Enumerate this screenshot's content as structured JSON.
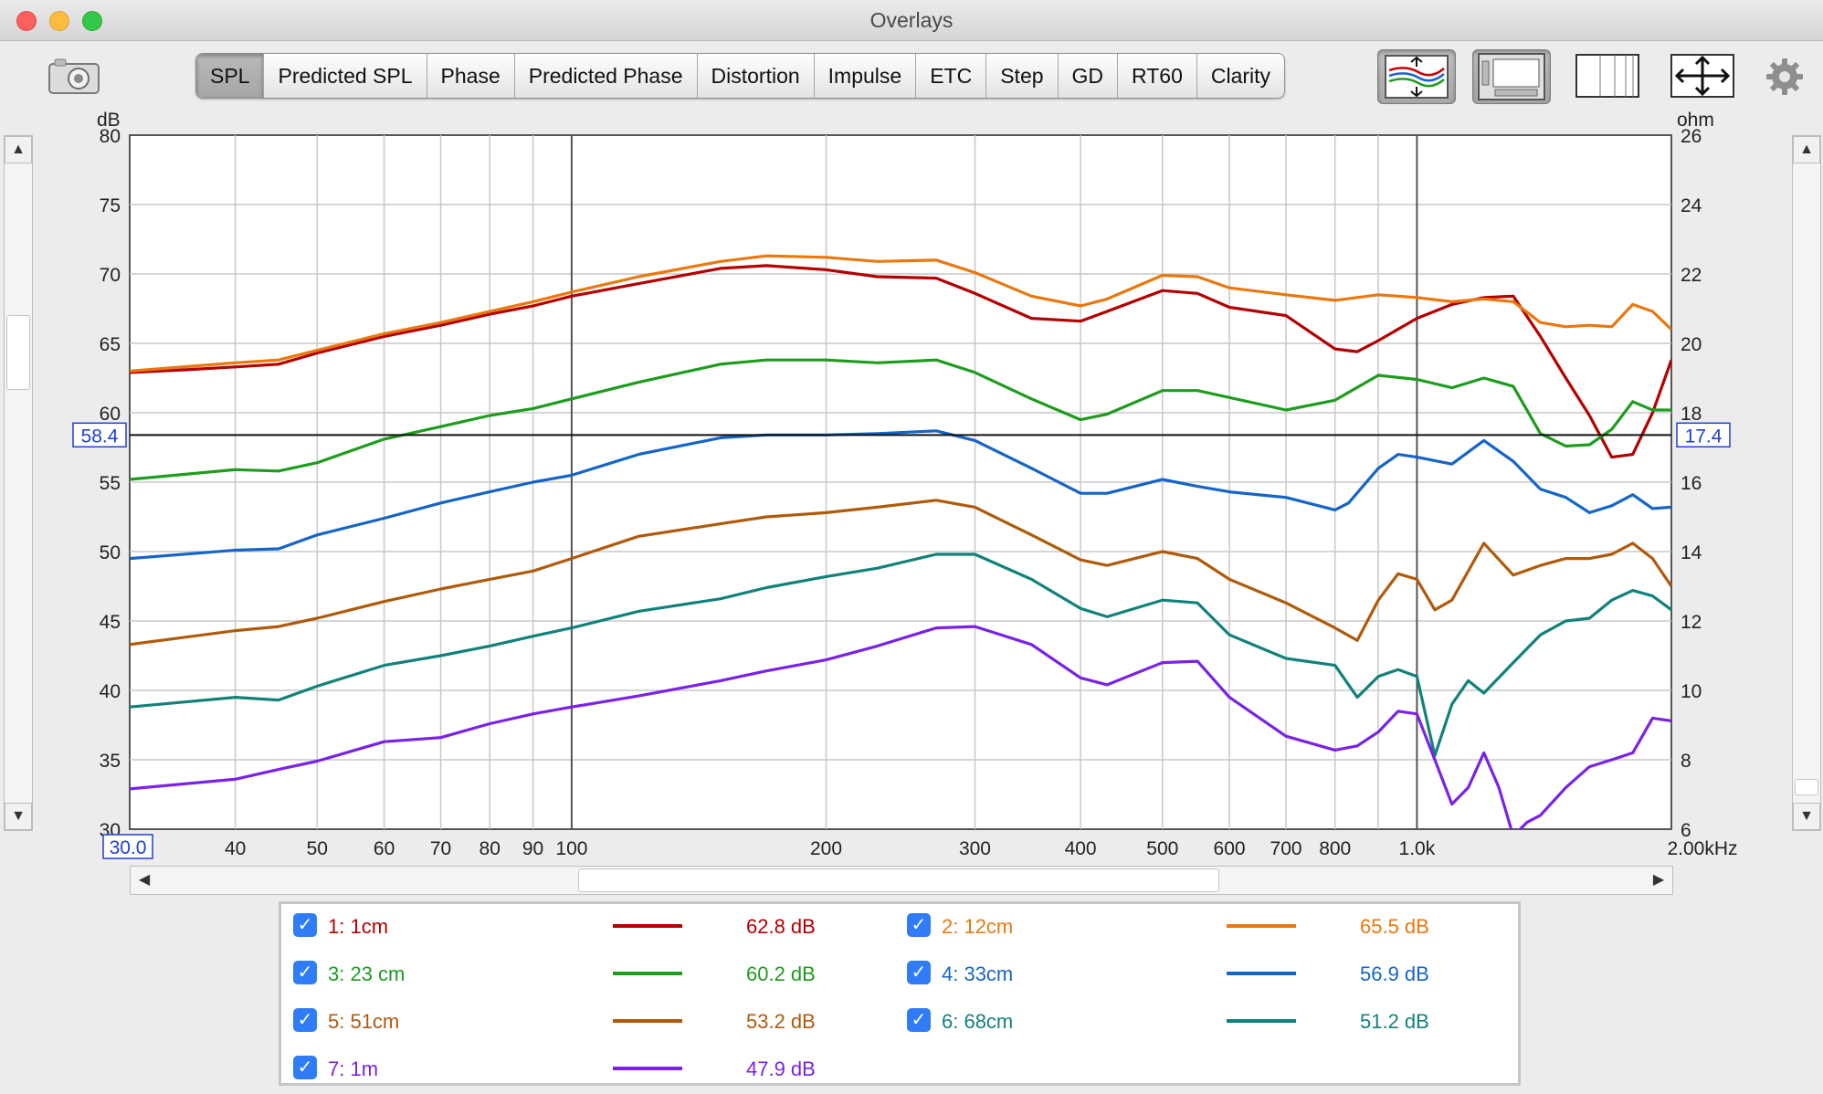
{
  "window": {
    "title": "Overlays"
  },
  "toolbar": {
    "tabs": [
      "SPL",
      "Predicted SPL",
      "Phase",
      "Predicted Phase",
      "Distortion",
      "Impulse",
      "ETC",
      "Step",
      "GD",
      "RT60",
      "Clarity"
    ],
    "active_tab": "SPL",
    "icons": [
      "camera-icon",
      "overlay-traces-icon",
      "fit-view-icon",
      "grid-icon",
      "pan-zoom-icon",
      "gear-icon"
    ]
  },
  "chart_data": {
    "type": "line",
    "x_scale": "log",
    "xlim": [
      30,
      2000
    ],
    "ylim": [
      30,
      80
    ],
    "ylabel": "dB",
    "y2label": "ohm",
    "y2lim": [
      6,
      26
    ],
    "x_unit": "kHz",
    "y_ticks": [
      "80",
      "75",
      "70",
      "65",
      "60",
      "55",
      "50",
      "45",
      "40",
      "35",
      "30"
    ],
    "y2_ticks": [
      "26",
      "24",
      "22",
      "20",
      "18",
      "16",
      "14",
      "12",
      "10",
      "8",
      "6"
    ],
    "x_ticks": [
      {
        "x": 40,
        "label": "40"
      },
      {
        "x": 50,
        "label": "50"
      },
      {
        "x": 60,
        "label": "60"
      },
      {
        "x": 70,
        "label": "70"
      },
      {
        "x": 80,
        "label": "80"
      },
      {
        "x": 90,
        "label": "90"
      },
      {
        "x": 100,
        "label": "100"
      },
      {
        "x": 200,
        "label": "200"
      },
      {
        "x": 300,
        "label": "300"
      },
      {
        "x": 400,
        "label": "400"
      },
      {
        "x": 500,
        "label": "500"
      },
      {
        "x": 600,
        "label": "600"
      },
      {
        "x": 700,
        "label": "700"
      },
      {
        "x": 800,
        "label": "800"
      },
      {
        "x": 1000,
        "label": "1.0k"
      },
      {
        "x": 2000,
        "label": "2.00kHz"
      }
    ],
    "x_start_label": "30.0",
    "cursor": {
      "y": 58.4,
      "left_label": "58.4",
      "right_label": "17.4"
    },
    "grid": true,
    "series": [
      {
        "name": "1: 1cm",
        "color": "#b40000",
        "level": "62.8 dB",
        "x": [
          30,
          35,
          40,
          45,
          50,
          60,
          70,
          80,
          90,
          100,
          120,
          150,
          170,
          200,
          230,
          270,
          300,
          350,
          400,
          430,
          500,
          550,
          600,
          700,
          800,
          850,
          900,
          1000,
          1100,
          1200,
          1300,
          1400,
          1500,
          1600,
          1700,
          1800,
          1900,
          2000
        ],
        "y": [
          62.9,
          63.1,
          63.3,
          63.5,
          64.3,
          65.5,
          66.3,
          67.1,
          67.7,
          68.4,
          69.3,
          70.4,
          70.6,
          70.3,
          69.8,
          69.7,
          68.6,
          66.8,
          66.6,
          67.3,
          68.8,
          68.6,
          67.6,
          67.0,
          64.6,
          64.4,
          65.2,
          66.8,
          67.8,
          68.3,
          68.4,
          65.5,
          62.5,
          59.8,
          56.8,
          57.0,
          60.0,
          63.8
        ]
      },
      {
        "name": "2: 12cm",
        "color": "#e9780f",
        "level": "65.5 dB",
        "x": [
          30,
          40,
          45,
          50,
          60,
          70,
          80,
          90,
          100,
          120,
          150,
          170,
          200,
          230,
          270,
          300,
          350,
          400,
          430,
          500,
          550,
          600,
          700,
          800,
          900,
          1000,
          1100,
          1200,
          1300,
          1400,
          1500,
          1600,
          1700,
          1800,
          1900,
          2000
        ],
        "y": [
          63.0,
          63.6,
          63.8,
          64.5,
          65.7,
          66.5,
          67.3,
          68.0,
          68.7,
          69.8,
          70.9,
          71.3,
          71.2,
          70.9,
          71.0,
          70.1,
          68.4,
          67.7,
          68.2,
          69.9,
          69.8,
          69.0,
          68.5,
          68.1,
          68.5,
          68.3,
          68.0,
          68.2,
          68.0,
          66.5,
          66.2,
          66.3,
          66.2,
          67.8,
          67.3,
          66.0
        ]
      },
      {
        "name": "3: 23 cm",
        "color": "#1e9c1e",
        "level": "60.2 dB",
        "x": [
          30,
          40,
          45,
          50,
          60,
          70,
          80,
          90,
          100,
          120,
          150,
          170,
          200,
          230,
          270,
          300,
          350,
          400,
          430,
          500,
          550,
          600,
          700,
          800,
          900,
          1000,
          1100,
          1200,
          1300,
          1400,
          1500,
          1600,
          1700,
          1800,
          1900,
          2000
        ],
        "y": [
          55.2,
          55.9,
          55.8,
          56.4,
          58.1,
          59.0,
          59.8,
          60.3,
          61.0,
          62.2,
          63.5,
          63.8,
          63.8,
          63.6,
          63.8,
          62.9,
          61.0,
          59.5,
          59.9,
          61.6,
          61.6,
          61.1,
          60.2,
          60.9,
          62.7,
          62.4,
          61.8,
          62.5,
          61.9,
          58.5,
          57.6,
          57.7,
          58.8,
          60.8,
          60.2,
          60.2
        ]
      },
      {
        "name": "4: 33cm",
        "color": "#1565c8",
        "level": "56.9 dB",
        "x": [
          30,
          40,
          45,
          50,
          60,
          70,
          80,
          90,
          100,
          120,
          150,
          170,
          200,
          230,
          270,
          300,
          350,
          400,
          430,
          500,
          550,
          600,
          700,
          800,
          830,
          900,
          950,
          1000,
          1100,
          1200,
          1300,
          1400,
          1500,
          1600,
          1700,
          1800,
          1900,
          2000
        ],
        "y": [
          49.5,
          50.1,
          50.2,
          51.2,
          52.4,
          53.5,
          54.3,
          55.0,
          55.5,
          57.0,
          58.2,
          58.4,
          58.4,
          58.5,
          58.7,
          58.0,
          56.0,
          54.2,
          54.2,
          55.2,
          54.7,
          54.3,
          53.9,
          53.0,
          53.5,
          56.0,
          57.0,
          56.8,
          56.3,
          58.0,
          56.5,
          54.5,
          53.9,
          52.8,
          53.3,
          54.1,
          53.1,
          53.2
        ]
      },
      {
        "name": "5: 51cm",
        "color": "#b05a0c",
        "level": "53.2 dB",
        "x": [
          30,
          40,
          45,
          50,
          60,
          70,
          80,
          90,
          100,
          120,
          150,
          170,
          200,
          230,
          270,
          300,
          350,
          400,
          430,
          500,
          550,
          600,
          700,
          800,
          850,
          900,
          950,
          1000,
          1050,
          1100,
          1200,
          1300,
          1400,
          1500,
          1600,
          1700,
          1800,
          1900,
          2000
        ],
        "y": [
          43.3,
          44.3,
          44.6,
          45.2,
          46.4,
          47.3,
          48.0,
          48.6,
          49.5,
          51.1,
          52.0,
          52.5,
          52.8,
          53.2,
          53.7,
          53.2,
          51.2,
          49.4,
          49.0,
          50.0,
          49.5,
          48.0,
          46.3,
          44.5,
          43.6,
          46.5,
          48.4,
          48.0,
          45.8,
          46.5,
          50.6,
          48.3,
          49.0,
          49.5,
          49.5,
          49.8,
          50.6,
          49.5,
          47.5
        ]
      },
      {
        "name": "6: 68cm",
        "color": "#11827a",
        "level": "51.2 dB",
        "x": [
          30,
          40,
          45,
          50,
          60,
          70,
          80,
          90,
          100,
          120,
          150,
          170,
          200,
          230,
          270,
          300,
          350,
          400,
          430,
          500,
          550,
          600,
          700,
          800,
          850,
          900,
          950,
          1000,
          1050,
          1100,
          1150,
          1200,
          1300,
          1400,
          1500,
          1600,
          1700,
          1800,
          1900,
          2000
        ],
        "y": [
          38.8,
          39.5,
          39.3,
          40.3,
          41.8,
          42.5,
          43.2,
          43.9,
          44.5,
          45.7,
          46.6,
          47.4,
          48.2,
          48.8,
          49.8,
          49.8,
          48.0,
          45.9,
          45.3,
          46.5,
          46.3,
          44.0,
          42.3,
          41.8,
          39.5,
          41.0,
          41.5,
          41.0,
          35.3,
          39.0,
          40.7,
          39.8,
          42.0,
          44.0,
          45.0,
          45.2,
          46.5,
          47.2,
          46.8,
          45.8
        ]
      },
      {
        "name": "7: 1m",
        "color": "#7a22e6",
        "level": "47.9 dB",
        "x": [
          30,
          40,
          45,
          50,
          60,
          70,
          80,
          90,
          100,
          120,
          150,
          170,
          200,
          230,
          270,
          300,
          350,
          400,
          430,
          500,
          550,
          600,
          700,
          800,
          850,
          900,
          950,
          1000,
          1050,
          1100,
          1150,
          1200,
          1250,
          1300,
          1350,
          1400,
          1500,
          1600,
          1700,
          1800,
          1900,
          2000
        ],
        "y": [
          32.9,
          33.6,
          34.3,
          34.9,
          36.3,
          36.6,
          37.6,
          38.3,
          38.8,
          39.6,
          40.7,
          41.4,
          42.2,
          43.2,
          44.5,
          44.6,
          43.3,
          40.9,
          40.4,
          42.0,
          42.1,
          39.5,
          36.7,
          35.7,
          36.0,
          37.0,
          38.5,
          38.3,
          35.0,
          31.8,
          33.0,
          35.5,
          33.0,
          29.5,
          30.5,
          31.0,
          33.0,
          34.5,
          35.0,
          35.5,
          38.0,
          37.8
        ]
      }
    ]
  },
  "legend": [
    {
      "name": "1: 1cm",
      "value": "62.8 dB",
      "color": "#b40000",
      "checked": true
    },
    {
      "name": "2: 12cm",
      "value": "65.5 dB",
      "color": "#e9780f",
      "checked": true
    },
    {
      "name": "3: 23 cm",
      "value": "60.2 dB",
      "color": "#1e9c1e",
      "checked": true
    },
    {
      "name": "4: 33cm",
      "value": "56.9 dB",
      "color": "#1565c8",
      "checked": true
    },
    {
      "name": "5: 51cm",
      "value": "53.2 dB",
      "color": "#b05a0c",
      "checked": true
    },
    {
      "name": "6: 68cm",
      "value": "51.2 dB",
      "color": "#11827a",
      "checked": true
    },
    {
      "name": "7: 1m",
      "value": "47.9 dB",
      "color": "#7a22e6",
      "checked": true
    }
  ]
}
